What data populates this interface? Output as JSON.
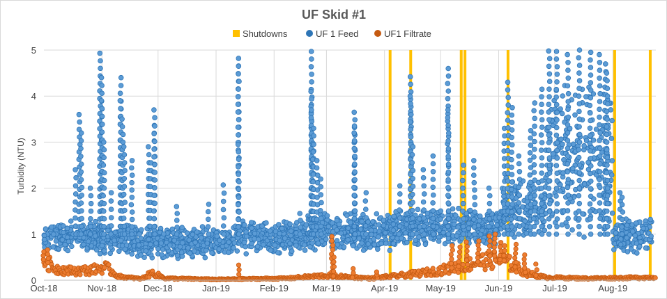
{
  "chart_data": {
    "type": "scatter",
    "title": "UF Skid #1",
    "xlabel": "",
    "ylabel": "Turbidity (NTU)",
    "ylim": [
      0,
      5
    ],
    "yticks": [
      "0",
      "1",
      "2",
      "3",
      "4",
      "5"
    ],
    "x_unit": "days since 2018-10-01",
    "xlim": [
      0,
      327
    ],
    "xticks": [
      {
        "label": "Oct-18",
        "x": 0
      },
      {
        "label": "Nov-18",
        "x": 31
      },
      {
        "label": "Dec-18",
        "x": 61
      },
      {
        "label": "Jan-19",
        "x": 92
      },
      {
        "label": "Feb-19",
        "x": 123
      },
      {
        "label": "Mar-19",
        "x": 151
      },
      {
        "label": "Apr-19",
        "x": 182
      },
      {
        "label": "May-19",
        "x": 212
      },
      {
        "label": "Jun-19",
        "x": 243
      },
      {
        "label": "Jul-19",
        "x": 273
      },
      {
        "label": "Aug-19",
        "x": 304
      }
    ],
    "grid": true,
    "legend_position": "top",
    "legend": [
      {
        "name": "Shutdowns",
        "marker": "square",
        "color": "#ffc000"
      },
      {
        "name": "UF 1 Feed",
        "marker": "circle",
        "color": "#2e75b6"
      },
      {
        "name": "UF1 Filtrate",
        "marker": "circle",
        "color": "#c55a11"
      }
    ],
    "series": [
      {
        "name": "Shutdowns",
        "kind": "vertical_lines",
        "color": "#ffc000",
        "x": [
          185,
          196,
          223,
          225,
          248,
          305,
          324
        ]
      },
      {
        "name": "UF 1 Feed",
        "kind": "points",
        "color": "#5b9bd5",
        "edge": "#2e75b6",
        "bands": [
          {
            "x": [
              0,
              30
            ],
            "range": [
              0.6,
              1.3
            ]
          },
          {
            "x": [
              30,
              50
            ],
            "range": [
              0.55,
              1.25
            ]
          },
          {
            "x": [
              50,
              92
            ],
            "range": [
              0.45,
              1.2
            ]
          },
          {
            "x": [
              92,
              101
            ],
            "range": [
              0.55,
              1.1
            ]
          },
          {
            "x": [
              101,
              140
            ],
            "range": [
              0.55,
              1.3
            ]
          },
          {
            "x": [
              140,
              185
            ],
            "range": [
              0.6,
              1.5
            ]
          },
          {
            "x": [
              185,
              245
            ],
            "range": [
              0.7,
              1.6
            ]
          },
          {
            "x": [
              245,
              268
            ],
            "range": [
              0.8,
              2.3
            ]
          },
          {
            "x": [
              268,
              304
            ],
            "range": [
              0.9,
              4.3
            ]
          },
          {
            "x": [
              304,
              325
            ],
            "range": [
              0.55,
              1.4
            ]
          }
        ],
        "spikes": [
          {
            "x": 17,
            "y": 2.4
          },
          {
            "x": 19,
            "y": 3.6
          },
          {
            "x": 20,
            "y": 3.2
          },
          {
            "x": 25,
            "y": 2.0
          },
          {
            "x": 30,
            "y": 4.93
          },
          {
            "x": 31,
            "y": 4.4
          },
          {
            "x": 31,
            "y": 3.9
          },
          {
            "x": 32,
            "y": 3.0
          },
          {
            "x": 36,
            "y": 1.9
          },
          {
            "x": 41,
            "y": 4.4
          },
          {
            "x": 41,
            "y": 3.9
          },
          {
            "x": 42,
            "y": 3.5
          },
          {
            "x": 43,
            "y": 2.9
          },
          {
            "x": 47,
            "y": 2.6
          },
          {
            "x": 56,
            "y": 2.9
          },
          {
            "x": 57,
            "y": 2.55
          },
          {
            "x": 59,
            "y": 3.7
          },
          {
            "x": 59,
            "y": 3.35
          },
          {
            "x": 71,
            "y": 1.6
          },
          {
            "x": 88,
            "y": 1.65
          },
          {
            "x": 96,
            "y": 2.07
          },
          {
            "x": 104,
            "y": 4.82
          },
          {
            "x": 104,
            "y": 4.65
          },
          {
            "x": 104,
            "y": 2.95
          },
          {
            "x": 104,
            "y": 1.8
          },
          {
            "x": 137,
            "y": 1.45
          },
          {
            "x": 143,
            "y": 4.97
          },
          {
            "x": 143,
            "y": 4.1
          },
          {
            "x": 143,
            "y": 3.7
          },
          {
            "x": 144,
            "y": 3.3
          },
          {
            "x": 144,
            "y": 2.95
          },
          {
            "x": 146,
            "y": 2.6
          },
          {
            "x": 148,
            "y": 2.2
          },
          {
            "x": 166,
            "y": 3.65
          },
          {
            "x": 166,
            "y": 3.35
          },
          {
            "x": 166,
            "y": 3.2
          },
          {
            "x": 172,
            "y": 1.9
          },
          {
            "x": 190,
            "y": 2.05
          },
          {
            "x": 196,
            "y": 4.42
          },
          {
            "x": 196,
            "y": 4.0
          },
          {
            "x": 196,
            "y": 3.6
          },
          {
            "x": 197,
            "y": 2.9
          },
          {
            "x": 203,
            "y": 2.4
          },
          {
            "x": 208,
            "y": 2.7
          },
          {
            "x": 216,
            "y": 4.6
          },
          {
            "x": 216,
            "y": 3.7
          },
          {
            "x": 224,
            "y": 2.5
          },
          {
            "x": 230,
            "y": 2.6
          },
          {
            "x": 238,
            "y": 2.0
          },
          {
            "x": 246,
            "y": 3.3
          },
          {
            "x": 248,
            "y": 4.3
          },
          {
            "x": 250,
            "y": 3.75
          },
          {
            "x": 254,
            "y": 2.7
          },
          {
            "x": 260,
            "y": 3.25
          },
          {
            "x": 262,
            "y": 3.85
          },
          {
            "x": 266,
            "y": 4.15
          },
          {
            "x": 270,
            "y": 4.98
          },
          {
            "x": 274,
            "y": 4.97
          },
          {
            "x": 280,
            "y": 4.9
          },
          {
            "x": 286,
            "y": 5.0
          },
          {
            "x": 292,
            "y": 4.95
          },
          {
            "x": 297,
            "y": 4.9
          },
          {
            "x": 300,
            "y": 4.7
          },
          {
            "x": 301,
            "y": 4.5
          },
          {
            "x": 308,
            "y": 1.9
          },
          {
            "x": 309,
            "y": 1.8
          }
        ]
      },
      {
        "name": "UF1 Filtrate",
        "kind": "points",
        "color": "#ed7d31",
        "edge": "#c55a11",
        "baseline": [
          {
            "x": 0,
            "y": 0.45
          },
          {
            "x": 6,
            "y": 0.25
          },
          {
            "x": 15,
            "y": 0.2
          },
          {
            "x": 25,
            "y": 0.22
          },
          {
            "x": 33,
            "y": 0.28
          },
          {
            "x": 40,
            "y": 0.08
          },
          {
            "x": 52,
            "y": 0.03
          },
          {
            "x": 58,
            "y": 0.16
          },
          {
            "x": 65,
            "y": 0.04
          },
          {
            "x": 92,
            "y": 0.02
          },
          {
            "x": 130,
            "y": 0.04
          },
          {
            "x": 150,
            "y": 0.1
          },
          {
            "x": 175,
            "y": 0.04
          },
          {
            "x": 195,
            "y": 0.12
          },
          {
            "x": 210,
            "y": 0.2
          },
          {
            "x": 222,
            "y": 0.3
          },
          {
            "x": 232,
            "y": 0.4
          },
          {
            "x": 245,
            "y": 0.45
          },
          {
            "x": 258,
            "y": 0.15
          },
          {
            "x": 268,
            "y": 0.06
          },
          {
            "x": 290,
            "y": 0.04
          },
          {
            "x": 327,
            "y": 0.06
          }
        ],
        "spikes": [
          {
            "x": 0,
            "y": 0.62
          },
          {
            "x": 2,
            "y": 0.66
          },
          {
            "x": 104,
            "y": 0.33
          },
          {
            "x": 154,
            "y": 0.95
          },
          {
            "x": 155,
            "y": 0.5
          },
          {
            "x": 165,
            "y": 0.25
          },
          {
            "x": 178,
            "y": 0.18
          },
          {
            "x": 218,
            "y": 0.75
          },
          {
            "x": 222,
            "y": 0.72
          },
          {
            "x": 226,
            "y": 0.83
          },
          {
            "x": 232,
            "y": 0.85
          },
          {
            "x": 238,
            "y": 0.96
          },
          {
            "x": 241,
            "y": 1.0
          },
          {
            "x": 244,
            "y": 0.82
          },
          {
            "x": 246,
            "y": 0.75
          },
          {
            "x": 252,
            "y": 0.78
          },
          {
            "x": 257,
            "y": 0.55
          },
          {
            "x": 263,
            "y": 0.35
          }
        ]
      }
    ]
  }
}
